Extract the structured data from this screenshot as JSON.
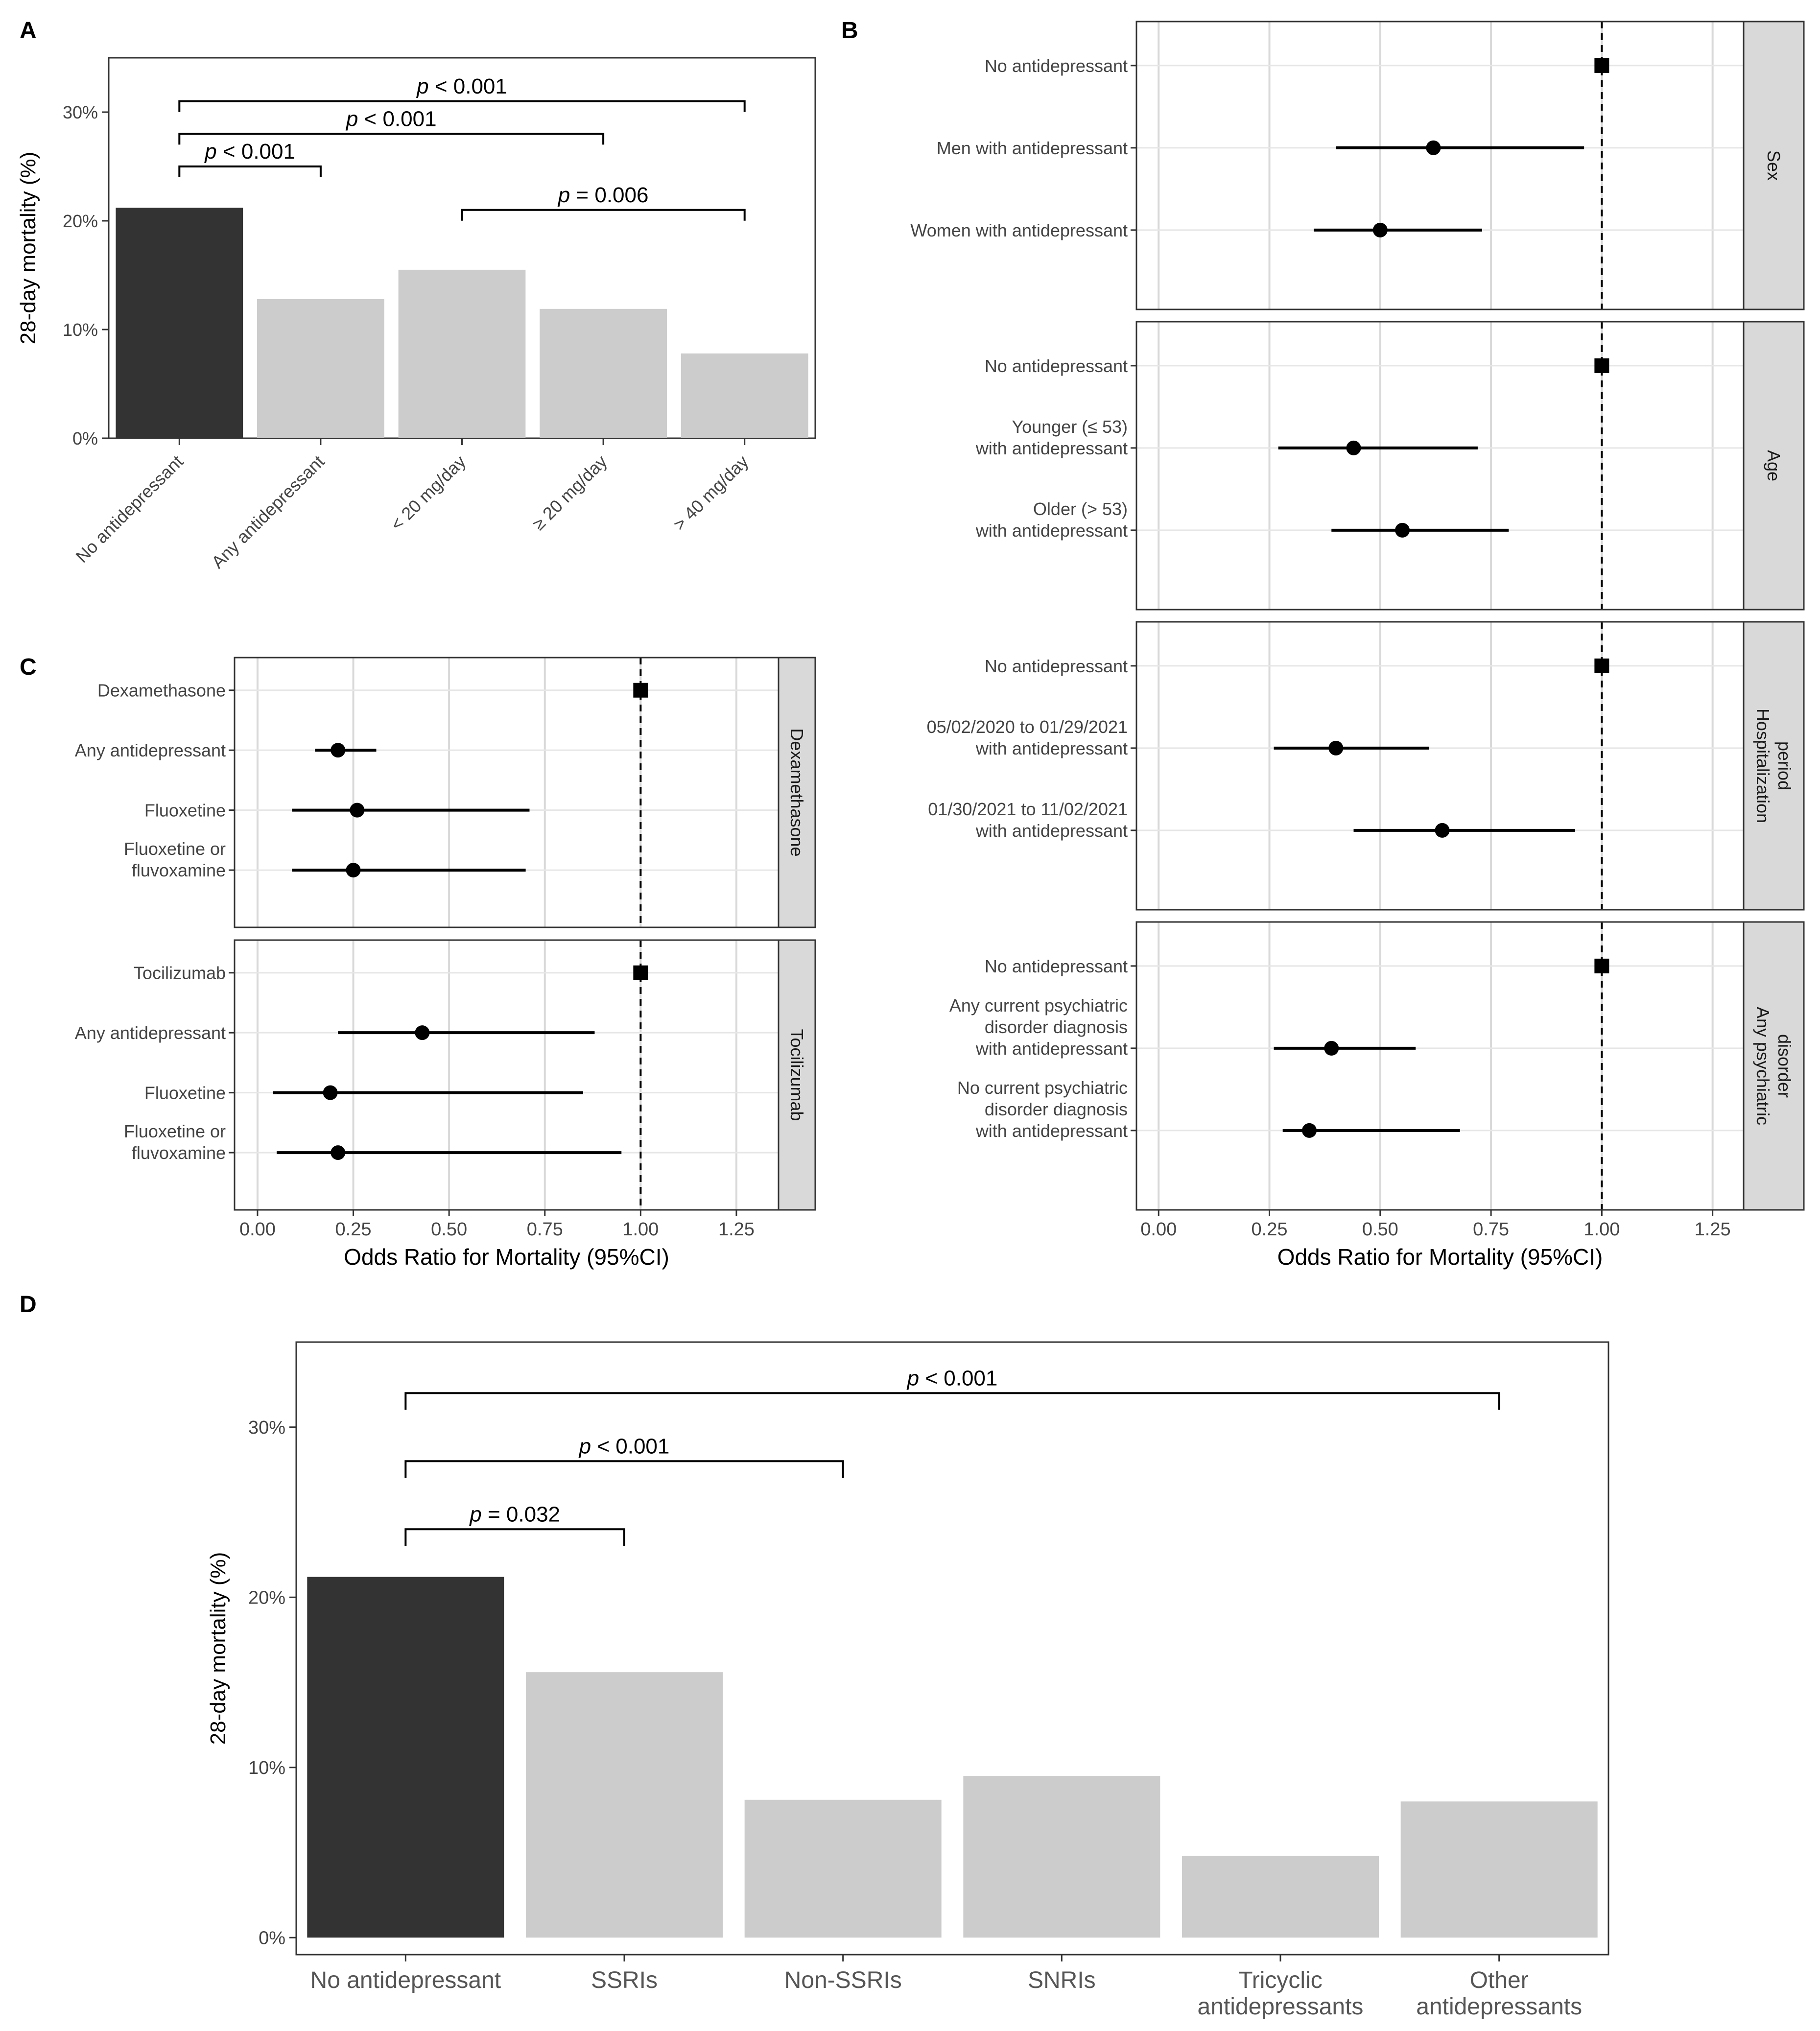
{
  "chart_data": [
    {
      "panel": "A",
      "type": "bar",
      "ylabel": "28-day mortality (%)",
      "ylim": [
        0,
        35
      ],
      "yticks": [
        0,
        10,
        20,
        30
      ],
      "ytick_labels": [
        "0%",
        "10%",
        "20%",
        "30%"
      ],
      "categories": [
        "No antidepressant",
        "Any antidepressant",
        "< 20 mg/day",
        "≥ 20 mg/day",
        "> 40 mg/day"
      ],
      "values": [
        21.2,
        12.8,
        15.5,
        11.9,
        7.8
      ],
      "highlight_index": 0,
      "colors": {
        "highlight": "#333333",
        "bar": "#cccccc"
      },
      "brackets": [
        {
          "from": 0,
          "to": 4,
          "y": 31.0,
          "p_label": "p",
          "p_text": " < 0.001"
        },
        {
          "from": 0,
          "to": 3,
          "y": 28.0,
          "p_label": "p",
          "p_text": " < 0.001"
        },
        {
          "from": 0,
          "to": 1,
          "y": 25.0,
          "p_label": "p",
          "p_text": " < 0.001"
        },
        {
          "from": 2,
          "to": 4,
          "y": 21.0,
          "p_label": "p",
          "p_text": " = 0.006"
        }
      ]
    },
    {
      "panel": "B",
      "type": "forest",
      "xlabel": "Odds Ratio for Mortality (95%CI)",
      "xlim": [
        -0.05,
        1.32
      ],
      "xticks": [
        0,
        0.25,
        0.5,
        0.75,
        1.0,
        1.25
      ],
      "xtick_labels": [
        "0.00",
        "0.25",
        "0.50",
        "0.75",
        "1.00",
        "1.25"
      ],
      "reference": 1.0,
      "facets": [
        {
          "strip": [
            "Sex"
          ],
          "rows": [
            {
              "label": [
                "No antidepressant"
              ],
              "or": 1.0,
              "lo": null,
              "hi": null,
              "marker": "square"
            },
            {
              "label": [
                "Men with antidepressant"
              ],
              "or": 0.62,
              "lo": 0.4,
              "hi": 0.96,
              "marker": "circle"
            },
            {
              "label": [
                "Women with antidepressant"
              ],
              "or": 0.5,
              "lo": 0.35,
              "hi": 0.73,
              "marker": "circle"
            }
          ]
        },
        {
          "strip": [
            "Age"
          ],
          "rows": [
            {
              "label": [
                "No antidepressant"
              ],
              "or": 1.0,
              "lo": null,
              "hi": null,
              "marker": "square"
            },
            {
              "label": [
                "Younger (≤ 53)",
                "with antidepressant"
              ],
              "or": 0.44,
              "lo": 0.27,
              "hi": 0.72,
              "marker": "circle"
            },
            {
              "label": [
                "Older (> 53)",
                "with antidepressant"
              ],
              "or": 0.55,
              "lo": 0.39,
              "hi": 0.79,
              "marker": "circle"
            }
          ]
        },
        {
          "strip": [
            "Hospitalization",
            "period"
          ],
          "rows": [
            {
              "label": [
                "No antidepressant"
              ],
              "or": 1.0,
              "lo": null,
              "hi": null,
              "marker": "square"
            },
            {
              "label": [
                "05/02/2020 to 01/29/2021",
                "with antidepressant"
              ],
              "or": 0.4,
              "lo": 0.26,
              "hi": 0.61,
              "marker": "circle"
            },
            {
              "label": [
                "01/30/2021 to 11/02/2021",
                "with antidepressant"
              ],
              "or": 0.64,
              "lo": 0.44,
              "hi": 0.94,
              "marker": "circle"
            }
          ]
        },
        {
          "strip": [
            "Any psychiatric",
            "disorder"
          ],
          "rows": [
            {
              "label": [
                "No antidepressant"
              ],
              "or": 1.0,
              "lo": null,
              "hi": null,
              "marker": "square"
            },
            {
              "label": [
                "Any current psychiatric",
                "disorder diagnosis",
                "with antidepressant"
              ],
              "or": 0.39,
              "lo": 0.26,
              "hi": 0.58,
              "marker": "circle"
            },
            {
              "label": [
                "No current psychiatric",
                "disorder diagnosis",
                "with antidepressant"
              ],
              "or": 0.34,
              "lo": 0.28,
              "hi": 0.68,
              "marker": "circle"
            }
          ]
        }
      ]
    },
    {
      "panel": "C",
      "type": "forest",
      "xlabel": "Odds Ratio for Mortality (95%CI)",
      "xlim": [
        -0.06,
        1.36
      ],
      "xticks": [
        0,
        0.25,
        0.5,
        0.75,
        1.0,
        1.25
      ],
      "xtick_labels": [
        "0.00",
        "0.25",
        "0.50",
        "0.75",
        "1.00",
        "1.25"
      ],
      "reference": 1.0,
      "facets": [
        {
          "strip": [
            "Dexamethasone"
          ],
          "rows": [
            {
              "label": [
                "Dexamethasone"
              ],
              "or": 1.0,
              "lo": null,
              "hi": null,
              "marker": "square"
            },
            {
              "label": [
                "Any antidepressant"
              ],
              "or": 0.21,
              "lo": 0.15,
              "hi": 0.31,
              "marker": "circle"
            },
            {
              "label": [
                "Fluoxetine"
              ],
              "or": 0.26,
              "lo": 0.09,
              "hi": 0.71,
              "marker": "circle"
            },
            {
              "label": [
                "Fluoxetine or",
                "fluvoxamine"
              ],
              "or": 0.25,
              "lo": 0.09,
              "hi": 0.7,
              "marker": "circle"
            }
          ]
        },
        {
          "strip": [
            "Tocilizumab"
          ],
          "rows": [
            {
              "label": [
                "Tocilizumab"
              ],
              "or": 1.0,
              "lo": null,
              "hi": null,
              "marker": "square"
            },
            {
              "label": [
                "Any antidepressant"
              ],
              "or": 0.43,
              "lo": 0.21,
              "hi": 0.88,
              "marker": "circle"
            },
            {
              "label": [
                "Fluoxetine"
              ],
              "or": 0.19,
              "lo": 0.04,
              "hi": 0.85,
              "marker": "circle"
            },
            {
              "label": [
                "Fluoxetine or",
                "fluvoxamine"
              ],
              "or": 0.21,
              "lo": 0.05,
              "hi": 0.95,
              "marker": "circle"
            }
          ]
        }
      ]
    },
    {
      "panel": "D",
      "type": "bar",
      "ylabel": "28-day mortality (%)",
      "ylim": [
        -1,
        35
      ],
      "yticks": [
        0,
        10,
        20,
        30
      ],
      "ytick_labels": [
        "0%",
        "10%",
        "20%",
        "30%"
      ],
      "categories": [
        [
          "No antidepressant"
        ],
        [
          "SSRIs"
        ],
        [
          "Non-SSRIs"
        ],
        [
          "SNRIs"
        ],
        [
          "Tricyclic",
          "antidepressants"
        ],
        [
          "Other",
          "antidepressants"
        ]
      ],
      "values": [
        21.2,
        15.6,
        8.1,
        9.5,
        4.8,
        8.0
      ],
      "highlight_index": 0,
      "colors": {
        "highlight": "#333333",
        "bar": "#cccccc"
      },
      "brackets": [
        {
          "from": 0,
          "to": 5,
          "y": 32.0,
          "p_label": "p",
          "p_text": " < 0.001"
        },
        {
          "from": 0,
          "to": 2,
          "y": 28.0,
          "p_label": "p",
          "p_text": " < 0.001"
        },
        {
          "from": 0,
          "to": 1,
          "y": 24.0,
          "p_label": "p",
          "p_text": " = 0.032"
        }
      ]
    }
  ]
}
